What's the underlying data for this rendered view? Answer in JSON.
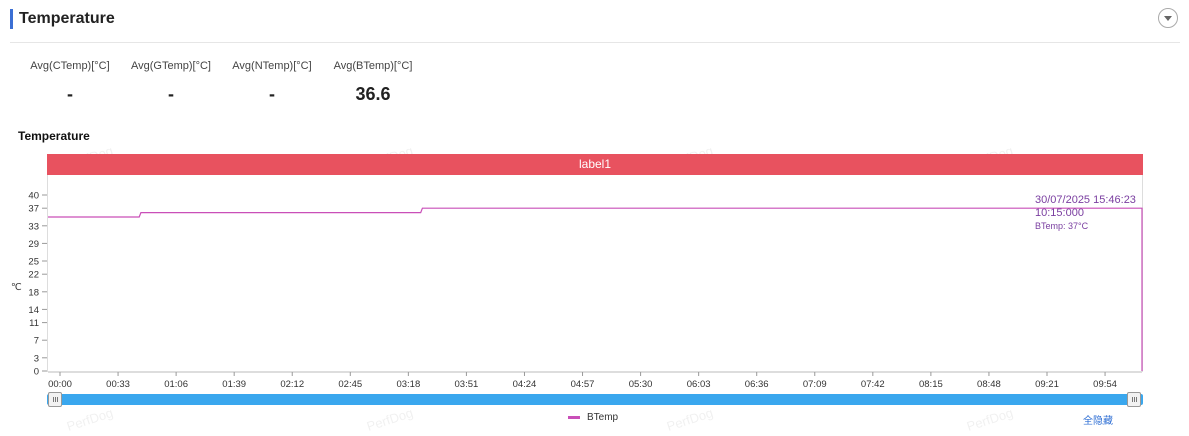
{
  "header": {
    "title": "Temperature"
  },
  "stats": [
    {
      "label": "Avg(CTemp)[°C]",
      "value": "-"
    },
    {
      "label": "Avg(GTemp)[°C]",
      "value": "-"
    },
    {
      "label": "Avg(NTemp)[°C]",
      "value": "-"
    },
    {
      "label": "Avg(BTemp)[°C]",
      "value": "36.6"
    }
  ],
  "watermark": "PerfDog",
  "chart": {
    "title": "Temperature",
    "label_band": "label1",
    "tooltip": {
      "time": "30/07/2025 15:46:23",
      "elapsed": "10:15:000",
      "value": "BTemp: 37°C"
    },
    "legend_hide_all": "全隐藏"
  },
  "chart_data": {
    "type": "line",
    "title": "Temperature",
    "ylabel": "℃",
    "xlabel": "",
    "ylim": [
      0,
      40
    ],
    "yticks": [
      "40",
      "37",
      "33",
      "29",
      "25",
      "22",
      "18",
      "14",
      "11",
      "7",
      "3",
      "0"
    ],
    "xticks": [
      "00:00",
      "00:33",
      "01:06",
      "01:39",
      "02:12",
      "02:45",
      "03:18",
      "03:51",
      "04:24",
      "04:57",
      "05:30",
      "06:03",
      "06:36",
      "07:09",
      "07:42",
      "08:15",
      "08:48",
      "09:21",
      "09:54"
    ],
    "xlim_seconds": [
      0,
      615
    ],
    "grid": false,
    "legend_position": "bottom",
    "colors": {
      "btemp": "#c94fb8",
      "band": "#e8525f",
      "slider": "#3aa7ee",
      "accent": "#3b6fd4"
    },
    "series": [
      {
        "name": "BTemp",
        "points": [
          {
            "x": "00:00",
            "y": 35
          },
          {
            "x": "00:45",
            "y": 35
          },
          {
            "x": "00:46",
            "y": 36
          },
          {
            "x": "03:25",
            "y": 36
          },
          {
            "x": "03:26",
            "y": 37
          },
          {
            "x": "10:15",
            "y": 37
          },
          {
            "x": "10:15",
            "y": 0
          }
        ]
      }
    ]
  }
}
